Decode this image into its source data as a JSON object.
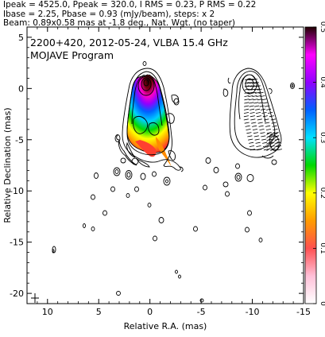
{
  "header": {
    "line1": "Ipeak = 4525.0, Ppeak = 320.0, I RMS = 0.23, P RMS = 0.22",
    "line2": "Ibase = 2.25, Pbase = 0.93 (mJy/beam), steps: x 2",
    "line3": "Beam: 0.89x0.58 mas at -1.8 deg., Nat. Wgt. (no taper)"
  },
  "inset": {
    "line1": "2200+420, 2012-05-24, VLBA 15.4 GHz",
    "line2": "MOJAVE Program"
  },
  "colors": {
    "colorbar_stops": [
      "#ffffff",
      "#ffc0d8",
      "#ff5050",
      "#ff9c00",
      "#ffff00",
      "#00d800",
      "#00e0ff",
      "#0060ff",
      "#9000ff",
      "#ff00ff",
      "#200000"
    ],
    "line": "#000000"
  },
  "chart_data": {
    "type": "heatmap",
    "xlabel": "Relative R.A. (mas)",
    "ylabel": "Relative Declination (mas)",
    "xlim": [
      12,
      -15
    ],
    "ylim": [
      -21,
      6
    ],
    "xticks": [
      10,
      5,
      0,
      -5,
      -10,
      -15
    ],
    "yticks": [
      5,
      0,
      -5,
      -10,
      -15,
      -20
    ],
    "colorbar": {
      "range": [
        0,
        0.5
      ],
      "ticks": [
        "0",
        "0.1",
        "0.2",
        "0.3",
        "0.4",
        "0.5"
      ]
    },
    "source": "2200+420",
    "date": "2012-05-24",
    "frequency": "VLBA 15.4 GHz",
    "program": "MOJAVE Program"
  }
}
